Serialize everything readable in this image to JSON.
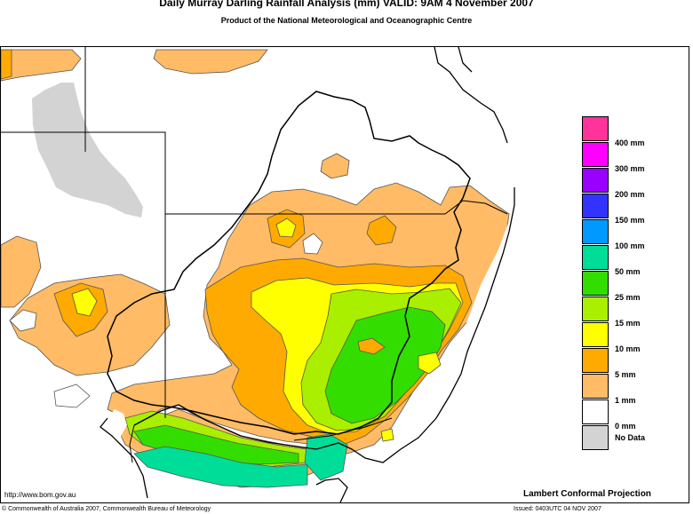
{
  "header": {
    "title": "Daily Murray Darling Rainfall Analysis (mm)  VALID: 9AM  4 November 2007",
    "subtitle": "Product of the National Meteorological and Oceanographic Centre"
  },
  "legend": {
    "items": [
      {
        "label": "400 mm",
        "color": "#ff3399"
      },
      {
        "label": "300 mm",
        "color": "#ff00ff"
      },
      {
        "label": "200 mm",
        "color": "#9900ff"
      },
      {
        "label": "150 mm",
        "color": "#3333ff"
      },
      {
        "label": "100 mm",
        "color": "#0099ff"
      },
      {
        "label": "50 mm",
        "color": "#00dd99"
      },
      {
        "label": "25 mm",
        "color": "#33dd00"
      },
      {
        "label": "15 mm",
        "color": "#aaee00"
      },
      {
        "label": "10 mm",
        "color": "#ffff00"
      },
      {
        "label": "5 mm",
        "color": "#ffaa00"
      },
      {
        "label": "1 mm",
        "color": "#ffbb66"
      },
      {
        "label": "0 mm",
        "color": "#ffffff"
      },
      {
        "label": "No Data",
        "color": "#d3d3d3"
      }
    ]
  },
  "footer": {
    "url": "http://www.bom.gov.au",
    "projection": "Lambert Conformal Projection",
    "copyright": "© Commonwealth of Australia 2007, Commonwealth Bureau of Meteorology",
    "issued": "Issued: 0403UTC 04 NOV 2007"
  }
}
